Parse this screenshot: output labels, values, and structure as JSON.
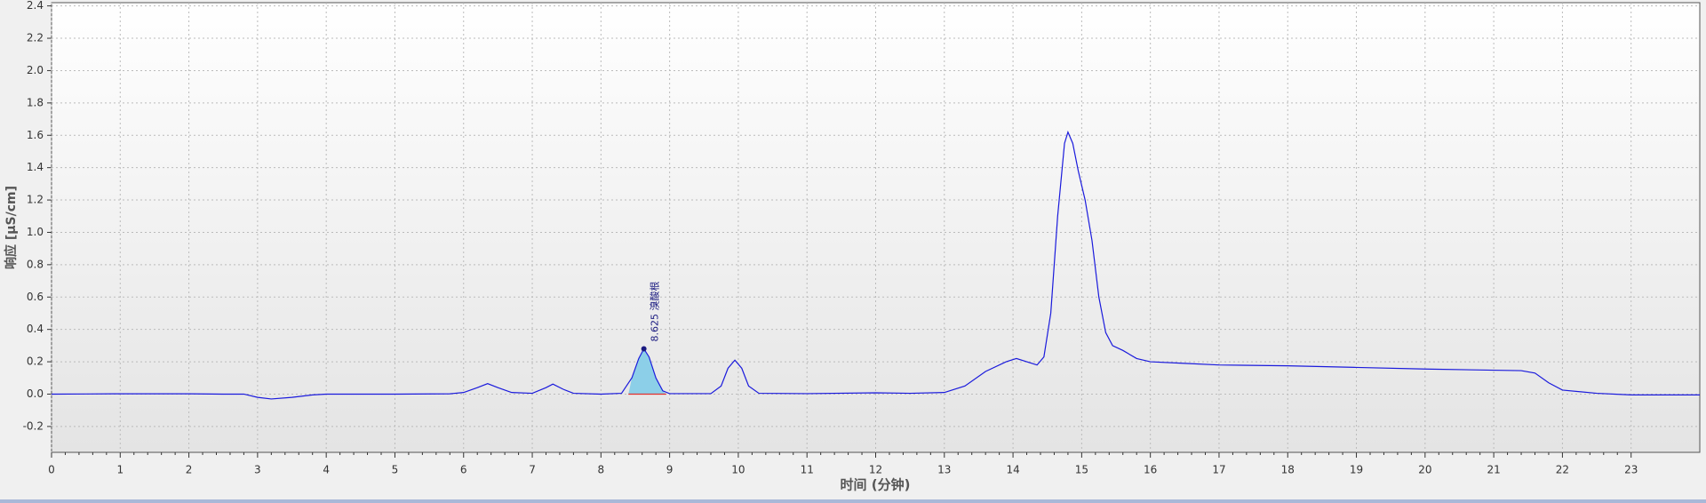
{
  "chart_data": {
    "type": "line",
    "x_label": "时间 (分钟)",
    "y_label": "响应 [µS/cm]",
    "xlim": [
      0,
      24
    ],
    "ylim": [
      -0.36,
      2.42
    ],
    "xticks": [
      0,
      1,
      2,
      3,
      4,
      5,
      6,
      7,
      8,
      9,
      10,
      11,
      12,
      13,
      14,
      15,
      16,
      17,
      18,
      19,
      20,
      21,
      22,
      23
    ],
    "yticks": [
      -0.2,
      {
        "value": 0,
        "label": "0.0"
      },
      0.2,
      0.4,
      0.6,
      0.8,
      {
        "value": 1,
        "label": "1.0"
      },
      1.2,
      1.4,
      1.6,
      1.8,
      {
        "value": 2,
        "label": "2.0"
      },
      2.2,
      2.4
    ],
    "grid": true,
    "series": [
      {
        "color": "#1a1adc",
        "x": [
          0,
          0.5,
          1,
          2,
          2.5,
          2.8,
          3.0,
          3.2,
          3.5,
          3.8,
          4,
          5,
          5.8,
          6.0,
          6.2,
          6.35,
          6.5,
          6.7,
          7.0,
          7.2,
          7.3,
          7.45,
          7.6,
          8.0,
          8.3,
          8.45,
          8.55,
          8.625,
          8.7,
          8.8,
          8.9,
          9.0,
          9.6,
          9.75,
          9.85,
          9.95,
          10.05,
          10.15,
          10.3,
          11,
          12,
          12.5,
          13.0,
          13.3,
          13.6,
          13.9,
          14.05,
          14.2,
          14.35,
          14.45,
          14.55,
          14.65,
          14.75,
          14.8,
          14.87,
          14.95,
          15.05,
          15.15,
          15.25,
          15.35,
          15.45,
          15.6,
          15.8,
          16,
          16.5,
          17,
          18,
          19,
          20,
          21,
          21.4,
          21.6,
          21.8,
          22.0,
          22.5,
          23,
          24
        ],
        "values": [
          0,
          0.001,
          0.002,
          0.002,
          0,
          0,
          -0.02,
          -0.03,
          -0.02,
          -0.005,
          0,
          0,
          0.002,
          0.01,
          0.04,
          0.065,
          0.04,
          0.01,
          0.005,
          0.04,
          0.062,
          0.03,
          0.005,
          0,
          0.005,
          0.1,
          0.22,
          0.28,
          0.23,
          0.1,
          0.02,
          0.003,
          0.003,
          0.05,
          0.16,
          0.21,
          0.16,
          0.05,
          0.005,
          0.003,
          0.008,
          0.005,
          0.01,
          0.05,
          0.14,
          0.2,
          0.22,
          0.2,
          0.18,
          0.23,
          0.5,
          1.1,
          1.55,
          1.62,
          1.55,
          1.38,
          1.2,
          0.95,
          0.6,
          0.38,
          0.3,
          0.27,
          0.22,
          0.2,
          0.19,
          0.18,
          0.175,
          0.165,
          0.155,
          0.148,
          0.145,
          0.13,
          0.07,
          0.025,
          0.005,
          -0.005,
          -0.005
        ]
      }
    ],
    "peak": {
      "label": "8.625 溴酸根",
      "x": 8.625,
      "y": 0.28,
      "start": 8.4,
      "end": 8.95,
      "fill": "#8ccfe8",
      "baseline_color": "#e03030"
    }
  }
}
